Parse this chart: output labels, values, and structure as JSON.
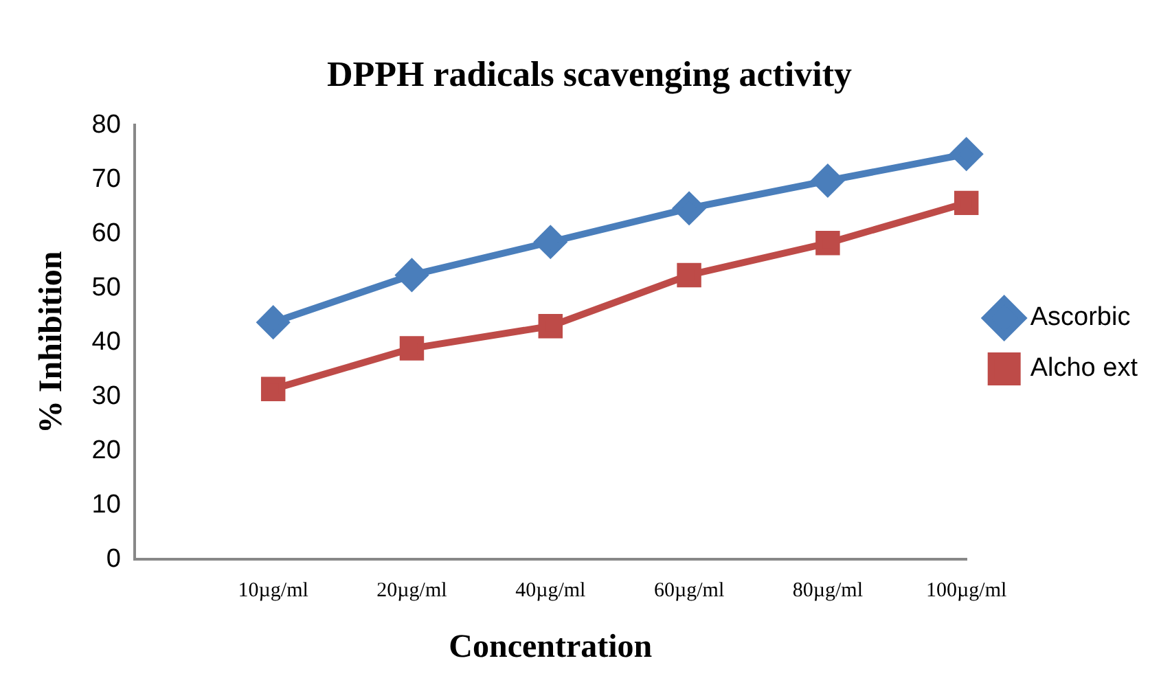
{
  "chart_data": {
    "type": "line",
    "title": "DPPH radicals scavenging activity",
    "xlabel": "Concentration",
    "ylabel": "% Inhibition",
    "categories": [
      null,
      "10µg/ml",
      "20µg/ml",
      "40µg/ml",
      "60µg/ml",
      "80µg/ml",
      "100µg/ml"
    ],
    "series": [
      {
        "name": "Ascorbic",
        "color": "#4a7ebb",
        "marker": "diamond",
        "values": [
          null,
          43.7,
          52.4,
          58.5,
          64.7,
          69.8,
          74.7
        ]
      },
      {
        "name": "Alcho ext",
        "color": "#be4b48",
        "marker": "square",
        "values": [
          null,
          31.4,
          38.9,
          43.0,
          52.4,
          58.3,
          65.7
        ]
      }
    ],
    "ylim": [
      0,
      80
    ],
    "yticks": [
      0,
      10,
      20,
      30,
      40,
      50,
      60,
      70,
      80
    ],
    "grid": false,
    "legend": "right"
  }
}
